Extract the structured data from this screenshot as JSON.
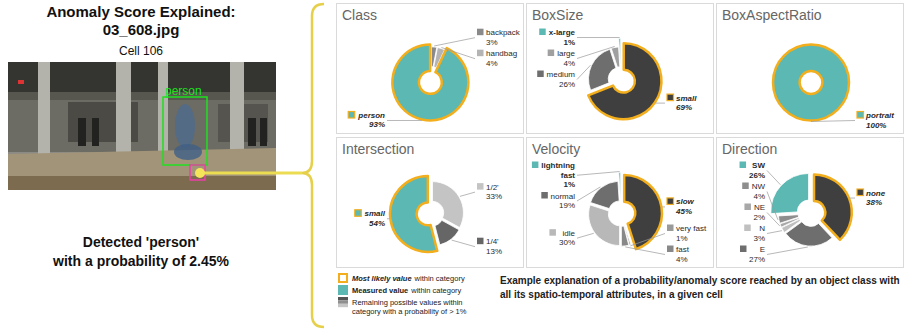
{
  "header": {
    "title": [
      "Anomaly Score Explained:",
      "03_608.jpg"
    ],
    "subtitle": "Cell 106"
  },
  "image": {
    "box_label": "person"
  },
  "detection": [
    "Detected 'person'",
    "with a probability of 2.45%"
  ],
  "key": [
    {
      "emphasis": "Most likely value",
      "text": "within category"
    },
    {
      "emphasis": "Measured value",
      "text": "within category"
    },
    {
      "text": "Remaining possible values within category with a probability of > 1%"
    }
  ],
  "caption": "Example explanation of a probability/anomaly score reached by an object class with all its spatio-temporal attributes, in a given cell",
  "chart_data": [
    {
      "type": "pie",
      "title": "Class",
      "categories": [
        "backpack",
        "handbag",
        "person"
      ],
      "values": [
        3,
        4,
        93
      ],
      "value_labels": [
        "3%",
        "4%",
        "93%"
      ],
      "colors": [
        "#8a8a8a",
        "#b4b4b4",
        "#5cb8b2"
      ],
      "most_likely": "person",
      "measured": "person"
    },
    {
      "type": "pie",
      "title": "BoxSize",
      "categories": [
        "small",
        "medium",
        "large",
        "x-large"
      ],
      "values": [
        69,
        26,
        4,
        1
      ],
      "value_labels": [
        "69%",
        "26%",
        "4%",
        "1%"
      ],
      "colors": [
        "#3f3f3f",
        "#6e6e6e",
        "#a0a0a0",
        "#5cb8b2"
      ],
      "most_likely": "small",
      "measured": "x-large"
    },
    {
      "type": "pie",
      "title": "BoxAspectRatio",
      "categories": [
        "portrait"
      ],
      "values": [
        100
      ],
      "value_labels": [
        "100%"
      ],
      "colors": [
        "#5cb8b2"
      ],
      "most_likely": "portrait",
      "measured": "portrait"
    },
    {
      "type": "pie",
      "title": "Intersection",
      "categories": [
        "1/2'",
        "1/4'",
        "small"
      ],
      "values": [
        33,
        13,
        54
      ],
      "value_labels": [
        "33%",
        "13%",
        "54%"
      ],
      "colors": [
        "#c4c4c4",
        "#666666",
        "#5cb8b2"
      ],
      "most_likely": "small",
      "measured": "small"
    },
    {
      "type": "pie",
      "title": "Velocity",
      "categories": [
        "slow",
        "very fast",
        "fast",
        "idle",
        "normal",
        "lightning fast"
      ],
      "values": [
        45,
        1,
        4,
        30,
        19,
        1
      ],
      "value_labels": [
        "45%",
        "1%",
        "4%",
        "30%",
        "19%",
        "1%"
      ],
      "colors": [
        "#3f3f3f",
        "#9a9a9a",
        "#888888",
        "#b8b8b8",
        "#6e6e6e",
        "#5cb8b2"
      ],
      "most_likely": "slow",
      "measured": "lightning fast"
    },
    {
      "type": "pie",
      "title": "Direction",
      "categories": [
        "none",
        "E",
        "N",
        "NE",
        "NW",
        "SW"
      ],
      "values": [
        38,
        27,
        3,
        2,
        4,
        26
      ],
      "value_labels": [
        "38%",
        "27%",
        "3%",
        "2%",
        "4%",
        "26%"
      ],
      "colors": [
        "#3f3f3f",
        "#6e6e6e",
        "#c0c0c0",
        "#a8a8a8",
        "#8e8e8e",
        "#5cb8b2"
      ],
      "most_likely": "none",
      "measured": "SW"
    }
  ]
}
